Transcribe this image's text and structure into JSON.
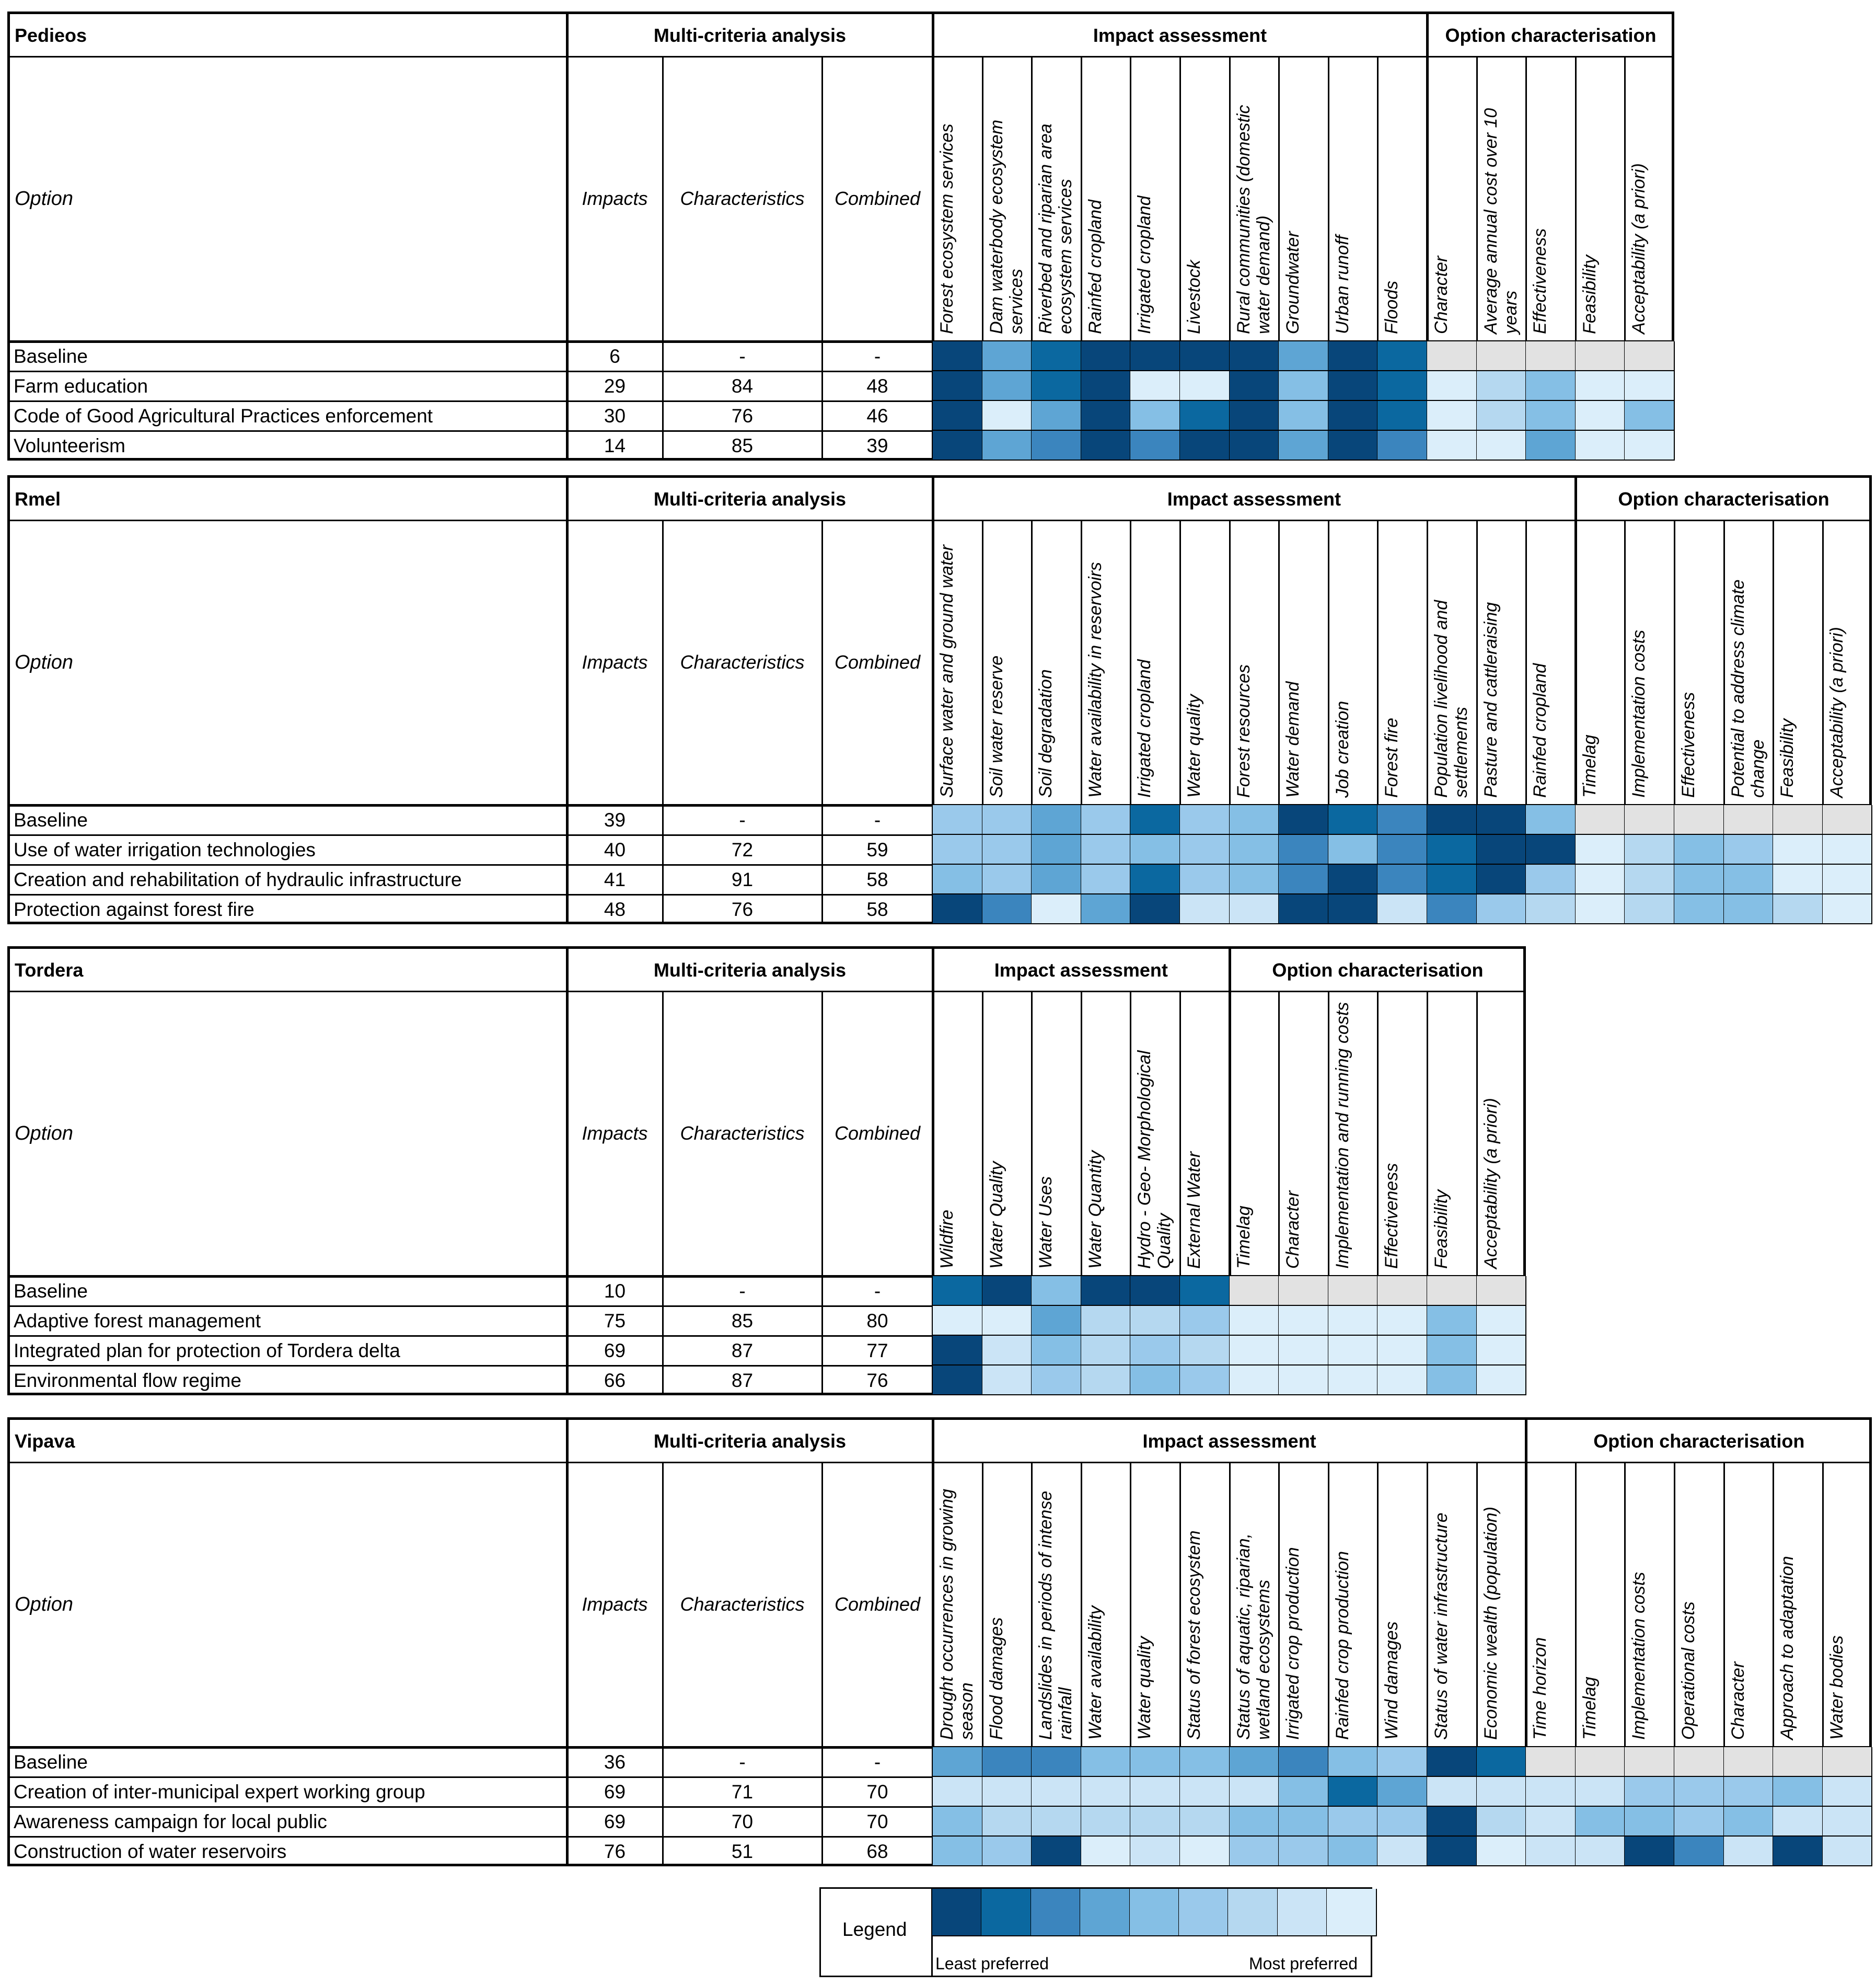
{
  "headers": {
    "mca": "Multi-criteria analysis",
    "impact": "Impact assessment",
    "optchar": "Option characterisation",
    "option": "Option",
    "impacts": "Impacts",
    "characteristics": "Characteristics",
    "combined": "Combined"
  },
  "palette": {
    "1": "#08467a",
    "2": "#0b68a0",
    "3": "#3b85be",
    "4": "#5ea5d4",
    "5": "#85bfe5",
    "6": "#9ac9eb",
    "7": "#b5d8f0",
    "8": "#cbe4f6",
    "9": "#dbeefa",
    "0": "#e2e2e2"
  },
  "blocks": [
    {
      "title": "Pedieos",
      "impact_criteria": [
        "Forest ecosystem services",
        "Dam waterbody ecosystem services",
        "Riverbed and riparian area ecosystem services",
        "Rainfed cropland",
        "Irrigated cropland",
        "Livestock",
        "Rural communities (domestic water demand)",
        "Groundwater",
        "Urban runoff",
        "Floods"
      ],
      "char_criteria": [
        "Character",
        "Average annual cost over 10 years",
        "Effectiveness",
        "Feasibility",
        "Acceptability (a priori)"
      ],
      "rows": [
        {
          "option": "Baseline",
          "impacts": "6",
          "characteristics": "-",
          "combined": "-",
          "impact_levels": [
            1,
            4,
            2,
            1,
            1,
            1,
            1,
            4,
            1,
            2
          ],
          "char_levels": [
            0,
            0,
            0,
            0,
            0
          ]
        },
        {
          "option": "Farm education",
          "impacts": "29",
          "characteristics": "84",
          "combined": "48",
          "impact_levels": [
            1,
            4,
            2,
            1,
            9,
            9,
            1,
            5,
            1,
            2
          ],
          "char_levels": [
            9,
            7,
            5,
            9,
            9
          ]
        },
        {
          "option": "Code of Good Agricultural Practices enforcement",
          "impacts": "30",
          "characteristics": "76",
          "combined": "46",
          "impact_levels": [
            1,
            9,
            4,
            1,
            5,
            2,
            1,
            5,
            1,
            2
          ],
          "char_levels": [
            9,
            7,
            5,
            9,
            5
          ]
        },
        {
          "option": "Volunteerism",
          "impacts": "14",
          "characteristics": "85",
          "combined": "39",
          "impact_levels": [
            1,
            4,
            3,
            1,
            3,
            1,
            1,
            4,
            1,
            3
          ],
          "char_levels": [
            9,
            9,
            4,
            9,
            9
          ]
        }
      ]
    },
    {
      "title": "Rmel",
      "impact_criteria": [
        "Surface water and ground water",
        "Soil water reserve",
        "Soil degradation",
        "Water availability in reservoirs",
        "Irrigated cropland",
        "Water quality",
        "Forest resources",
        "Water demand",
        "Job creation",
        "Forest fire",
        "Population livelihood and settlements",
        "Pasture and cattleraising",
        "Rainfed cropland"
      ],
      "char_criteria": [
        "Timelag",
        "Implementation costs",
        "Effectiveness",
        "Potential to address climate change",
        "Feasibility",
        "Acceptability (a priori)"
      ],
      "rows": [
        {
          "option": "Baseline",
          "impacts": "39",
          "characteristics": "-",
          "combined": "-",
          "impact_levels": [
            6,
            6,
            4,
            6,
            2,
            6,
            5,
            1,
            2,
            3,
            1,
            1,
            5
          ],
          "char_levels": [
            0,
            0,
            0,
            0,
            0,
            0
          ]
        },
        {
          "option": "Use of water irrigation technologies",
          "impacts": "40",
          "characteristics": "72",
          "combined": "59",
          "impact_levels": [
            6,
            6,
            4,
            6,
            5,
            6,
            5,
            3,
            5,
            3,
            2,
            1,
            1
          ],
          "char_levels": [
            9,
            7,
            5,
            6,
            9,
            9
          ]
        },
        {
          "option": "Creation and rehabilitation of hydraulic infrastructure",
          "impacts": "41",
          "characteristics": "91",
          "combined": "58",
          "impact_levels": [
            5,
            6,
            4,
            6,
            2,
            6,
            5,
            3,
            1,
            3,
            2,
            1,
            6
          ],
          "char_levels": [
            9,
            7,
            5,
            5,
            9,
            9
          ]
        },
        {
          "option": "Protection against forest fire",
          "impacts": "48",
          "characteristics": "76",
          "combined": "58",
          "impact_levels": [
            1,
            3,
            9,
            4,
            1,
            8,
            8,
            1,
            1,
            8,
            3,
            6,
            7
          ],
          "char_levels": [
            9,
            7,
            5,
            5,
            7,
            9
          ]
        }
      ]
    },
    {
      "title": "Tordera",
      "impact_criteria": [
        "Wildfire",
        "Water Quality",
        "Water Uses",
        "Water Quantity",
        "Hydro - Geo- Morphological Quality",
        "External Water"
      ],
      "char_criteria": [
        "Timelag",
        "Character",
        "Implementation and running costs",
        "Effectiveness",
        "Feasibility",
        "Acceptability (a priori)"
      ],
      "rows": [
        {
          "option": "Baseline",
          "impacts": "10",
          "characteristics": "-",
          "combined": "-",
          "impact_levels": [
            2,
            1,
            5,
            1,
            1,
            2
          ],
          "char_levels": [
            0,
            0,
            0,
            0,
            0,
            0
          ]
        },
        {
          "option": "Adaptive forest management",
          "impacts": "75",
          "characteristics": "85",
          "combined": "80",
          "impact_levels": [
            9,
            9,
            4,
            7,
            7,
            6
          ],
          "char_levels": [
            9,
            9,
            9,
            9,
            5,
            9
          ]
        },
        {
          "option": "Integrated plan for protection of Tordera delta",
          "impacts": "69",
          "characteristics": "87",
          "combined": "77",
          "impact_levels": [
            1,
            8,
            5,
            7,
            6,
            7
          ],
          "char_levels": [
            9,
            9,
            9,
            9,
            5,
            9
          ]
        },
        {
          "option": "Environmental flow regime",
          "impacts": "66",
          "characteristics": "87",
          "combined": "76",
          "impact_levels": [
            1,
            8,
            6,
            7,
            5,
            6
          ],
          "char_levels": [
            9,
            9,
            9,
            9,
            5,
            9
          ]
        }
      ]
    },
    {
      "title": "Vipava",
      "impact_criteria": [
        "Drought occurrences in growing season",
        "Flood damages",
        "Landslides in periods of intense rainfall",
        "Water availability",
        "Water quality",
        "Status of forest ecosystem",
        "Status of aquatic, riparian, wetland ecosystems",
        "Irrigated crop production",
        "Rainfed crop production",
        "Wind damages",
        "Status of water infrastructure",
        "Economic wealth (population)"
      ],
      "char_criteria": [
        "Time horizon",
        "Timelag",
        "Implementation costs",
        "Operational costs",
        "Character",
        "Approach to adaptation",
        "Water bodies"
      ],
      "rows": [
        {
          "option": "Baseline",
          "impacts": "36",
          "characteristics": "-",
          "combined": "-",
          "impact_levels": [
            4,
            3,
            3,
            5,
            5,
            5,
            4,
            3,
            5,
            6,
            1,
            2
          ],
          "char_levels": [
            0,
            0,
            0,
            0,
            0,
            0,
            0
          ]
        },
        {
          "option": "Creation of inter-municipal expert working group",
          "impacts": "69",
          "characteristics": "71",
          "combined": "70",
          "impact_levels": [
            8,
            8,
            8,
            8,
            8,
            8,
            8,
            5,
            2,
            4,
            8,
            8
          ],
          "char_levels": [
            8,
            8,
            6,
            6,
            6,
            5,
            8
          ]
        },
        {
          "option": "Awareness campaign for local public",
          "impacts": "69",
          "characteristics": "70",
          "combined": "70",
          "impact_levels": [
            5,
            7,
            7,
            7,
            7,
            7,
            5,
            5,
            6,
            6,
            1,
            7
          ],
          "char_levels": [
            8,
            5,
            5,
            6,
            5,
            8,
            8
          ]
        },
        {
          "option": "Construction of water reservoirs",
          "impacts": "76",
          "characteristics": "51",
          "combined": "68",
          "impact_levels": [
            5,
            6,
            1,
            9,
            8,
            9,
            6,
            6,
            5,
            8,
            1,
            9
          ],
          "char_levels": [
            8,
            8,
            1,
            3,
            8,
            1,
            8
          ]
        }
      ]
    }
  ],
  "legend": {
    "label": "Legend",
    "least": "Least preferred",
    "most": "Most preferred",
    "levels": [
      1,
      2,
      3,
      4,
      5,
      6,
      7,
      8,
      9
    ]
  }
}
